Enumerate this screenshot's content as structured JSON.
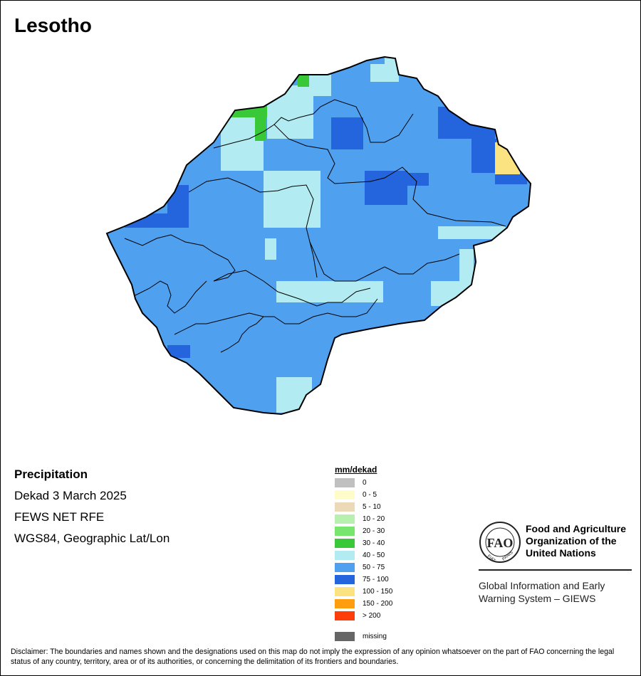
{
  "title": "Lesotho",
  "info": {
    "variable": "Precipitation",
    "period": "Dekad 3 March 2025",
    "source": "FEWS NET RFE",
    "projection": "WGS84, Geographic Lat/Lon"
  },
  "legend": {
    "title": "mm/dekad",
    "items": [
      {
        "label": "0",
        "color": "#c0c0c0"
      },
      {
        "label": "0 - 5",
        "color": "#fefcc8"
      },
      {
        "label": "5 - 10",
        "color": "#ecd9b8"
      },
      {
        "label": "10 - 20",
        "color": "#b8f0b0"
      },
      {
        "label": "20 - 30",
        "color": "#78e66e"
      },
      {
        "label": "30 - 40",
        "color": "#38c838"
      },
      {
        "label": "40 - 50",
        "color": "#b2ecf2"
      },
      {
        "label": "50 - 75",
        "color": "#50a0f0"
      },
      {
        "label": "75 - 100",
        "color": "#2464dc"
      },
      {
        "label": "100 - 150",
        "color": "#fce382"
      },
      {
        "label": "150 - 200",
        "color": "#fe9e0e"
      },
      {
        "label": "> 200",
        "color": "#fe3e0a"
      },
      {
        "label": "missing",
        "color": "#666666"
      }
    ]
  },
  "logo": {
    "letters": "FAO",
    "motto_left": "FIAT",
    "motto_right": "PANIS",
    "org_name": "Food and Agriculture\nOrganization of the\nUnited Nations",
    "system_name": "Global Information and Early\nWarning System – GIEWS"
  },
  "disclaimer": "Disclaimer: The boundaries and names shown and the designations used on this map do not imply the expression of any opinion whatsoever on the part of FAO concerning the legal status of any country, territory, area or of its authorities, or concerning the delimitation of its frontiers and boundaries."
}
